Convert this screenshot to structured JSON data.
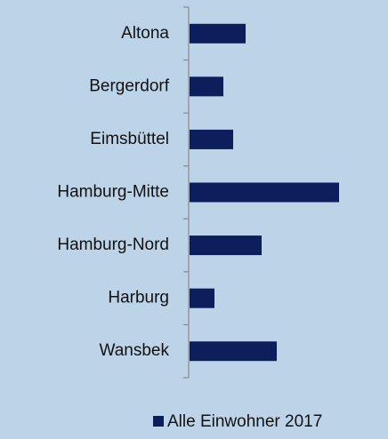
{
  "chart_data": {
    "type": "bar",
    "orientation": "horizontal",
    "categories": [
      "Altona",
      "Bergerdorf",
      "Eimsbüttel",
      "Hamburg-Mitte",
      "Hamburg-Nord",
      "Harburg",
      "Wansbek"
    ],
    "series": [
      {
        "name": "Alle Einwohner 2017",
        "color": "#0c1f5c",
        "values": [
          63,
          38,
          49,
          168,
          81,
          28,
          98
        ]
      }
    ],
    "xlim": [
      0,
      200
    ],
    "legend": "bottom"
  }
}
